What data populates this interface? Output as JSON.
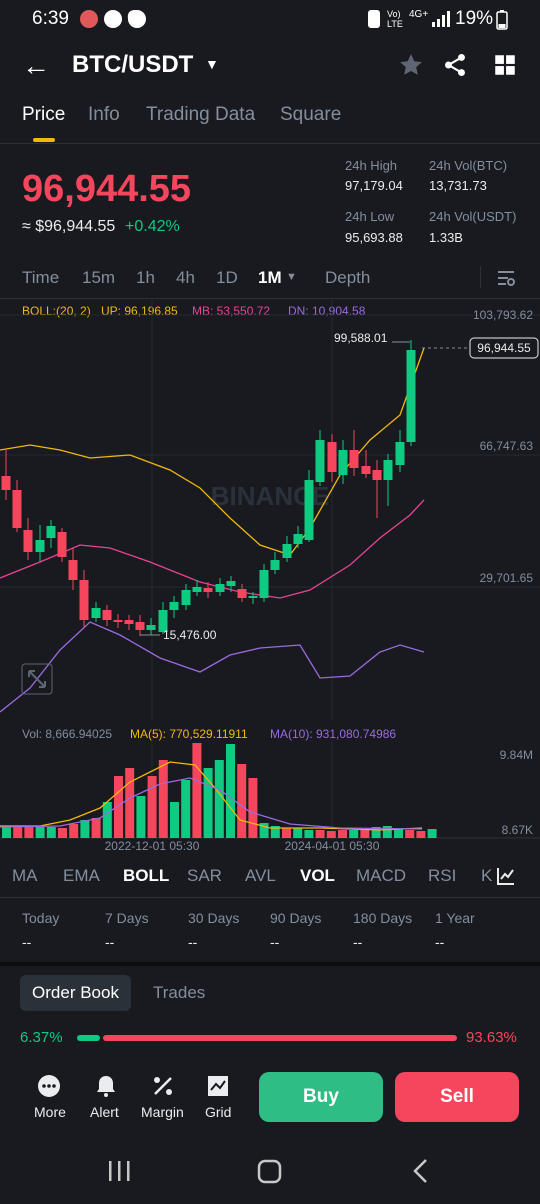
{
  "status": {
    "time": "6:39",
    "g_label": "G",
    "network": "4G+",
    "battery": "19%"
  },
  "header": {
    "pair": "BTC/USDT"
  },
  "tabs": [
    "Price",
    "Info",
    "Trading Data",
    "Square"
  ],
  "ticker": {
    "price": "96,944.55",
    "approx": "≈ $96,944.55",
    "change": "+0.42%",
    "high_label": "24h High",
    "high": "97,179.04",
    "vol_btc_label": "24h Vol(BTC)",
    "vol_btc": "13,731.73",
    "low_label": "24h Low",
    "low": "95,693.88",
    "vol_usdt_label": "24h Vol(USDT)",
    "vol_usdt": "1.33B"
  },
  "intervals": [
    "Time",
    "15m",
    "1h",
    "4h",
    "1D",
    "1M",
    "Depth"
  ],
  "boll": {
    "params": "BOLL:(20, 2)",
    "up": "UP: 96,196.85",
    "mb": "MB: 53,550.72",
    "dn": "DN: 10,904.58"
  },
  "price_axis": [
    "103,793.62",
    "66,747.63",
    "29,701.65"
  ],
  "chart_labels": {
    "high_marker": "99,588.01",
    "current": "96,944.55",
    "low_marker": "15,476.00",
    "watermark": "BINANCE"
  },
  "volume": {
    "vol": "Vol: 8,666.94025",
    "ma5": "MA(5): 770,529.11911",
    "ma10": "MA(10): 931,080.74986",
    "axis_top": "9.84M",
    "axis_bottom": "8.67K",
    "date1": "2022-12-01 05:30",
    "date2": "2024-04-01 05:30"
  },
  "indicators": [
    "MA",
    "EMA",
    "BOLL",
    "SAR",
    "AVL",
    "VOL",
    "MACD",
    "RSI",
    "K"
  ],
  "performance": {
    "labels": [
      "Today",
      "7 Days",
      "30 Days",
      "90 Days",
      "180 Days",
      "1 Year"
    ],
    "values": [
      "--",
      "--",
      "--",
      "--",
      "--",
      "--"
    ]
  },
  "orderbook": {
    "tab1": "Order Book",
    "tab2": "Trades",
    "bid_pct": "6.37%",
    "ask_pct": "93.63%"
  },
  "bottom_nav": {
    "more": "More",
    "alert": "Alert",
    "margin": "Margin",
    "grid": "Grid",
    "buy": "Buy",
    "sell": "Sell"
  },
  "colors": {
    "up": "#0ecb81",
    "down": "#f6465d",
    "accent": "#f0b90b",
    "boll_up": "#f0b90b",
    "boll_mb": "#e84393",
    "boll_dn": "#9c6ade"
  }
}
